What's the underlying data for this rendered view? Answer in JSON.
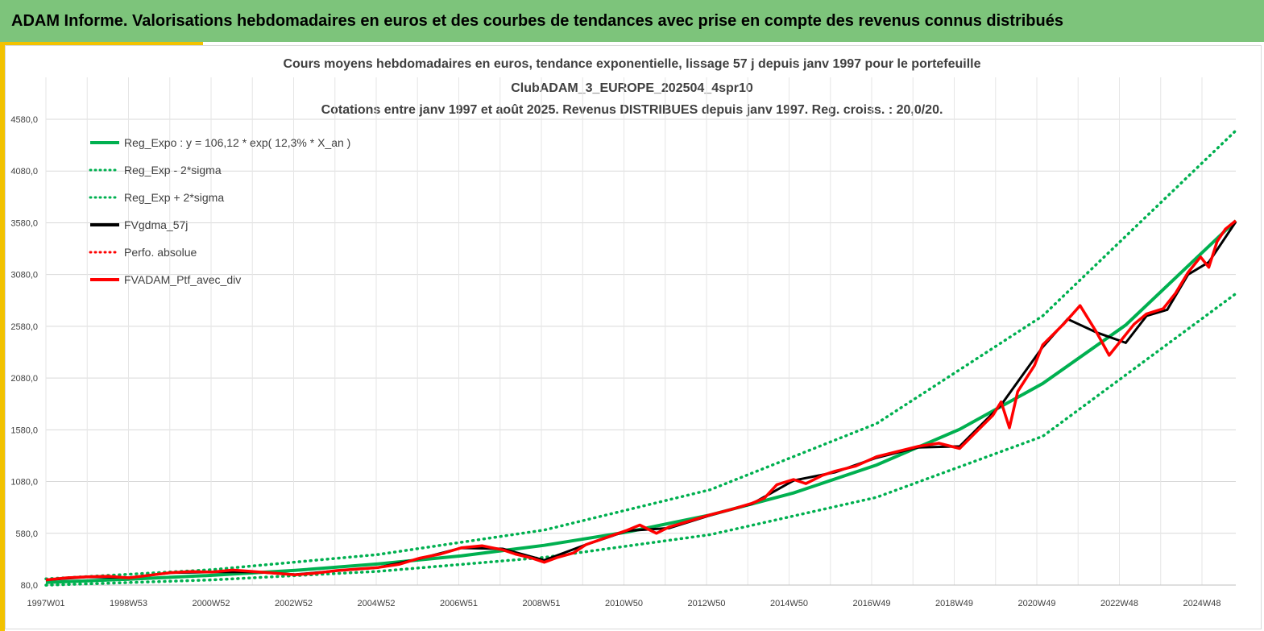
{
  "header": {
    "title": "ADAM Informe. Valorisations hebdomadaires en euros et des courbes de tendances avec prise en compte des revenus connus distribués"
  },
  "colors": {
    "header_bg": "#7dc47b",
    "accent": "#f2c200",
    "trend": "#00b050",
    "smooth": "#000000",
    "portfolio": "#ff0000"
  },
  "chart_data": {
    "type": "line",
    "title": [
      "Cours moyens hebdomadaires  en euros, tendance exponentielle, lissage 57 j depuis janv 1997 pour le portefeuille",
      "ClubADAM_3_EUROPE_202504_4spr10",
      "Cotations  entre janv 1997 et août 2025. Revenus DISTRIBUES depuis janv 1997. Reg. croiss. : 20,0/20."
    ],
    "ylim": [
      80,
      4580
    ],
    "xlim": [
      1997.0,
      2025.65
    ],
    "grid": true,
    "legend_position": "top-left",
    "y_ticks": [
      "80,0",
      "580,0",
      "1080,0",
      "1580,0",
      "2080,0",
      "2580,0",
      "3080,0",
      "3580,0",
      "4080,0",
      "4580,0"
    ],
    "x_ticks": [
      "1997W01",
      "1998W53",
      "2000W52",
      "2002W52",
      "2004W52",
      "2006W51",
      "2008W51",
      "2010W50",
      "2012W50",
      "2014W50",
      "2016W49",
      "2018W49",
      "2020W49",
      "2022W48",
      "2024W48"
    ],
    "legend": [
      {
        "label": "Reg_Expo : y = 106,12 * exp( 12,3% *  X_an )",
        "color": "#00b050",
        "style": "solid",
        "width": 4
      },
      {
        "label": "Reg_Exp - 2*sigma",
        "color": "#00b050",
        "style": "dotted",
        "width": 3
      },
      {
        "label": "Reg_Exp + 2*sigma",
        "color": "#00b050",
        "style": "dotted",
        "width": 3
      },
      {
        "label": "FVgdma_57j",
        "color": "#000000",
        "style": "solid",
        "width": 4
      },
      {
        "label": "Perfo. absolue",
        "color": "#ff0000",
        "style": "dotted",
        "width": 3
      },
      {
        "label": "FVADAM_Ptf_avec_div",
        "color": "#ff0000",
        "style": "solid",
        "width": 4
      }
    ],
    "trend": {
      "formula": "106.12 * exp(0.123 * years_since_1997)",
      "x": [
        1997.0,
        1999.0,
        2001.0,
        2003.0,
        2005.0,
        2007.0,
        2009.0,
        2011.0,
        2013.0,
        2015.0,
        2017.0,
        2019.0,
        2021.0,
        2023.0,
        2025.65
      ],
      "y": [
        106,
        136,
        174,
        222,
        284,
        363,
        464,
        593,
        758,
        970,
        1240,
        1585,
        2027,
        2592,
        3600
      ]
    },
    "band_lower": {
      "x": [
        1997.0,
        2001.0,
        2005.0,
        2009.0,
        2013.0,
        2017.0,
        2021.0,
        2025.65
      ],
      "y": [
        79,
        130,
        212,
        347,
        567,
        928,
        1517,
        2895
      ]
    },
    "band_upper": {
      "x": [
        1997.0,
        2001.0,
        2005.0,
        2009.0,
        2013.0,
        2017.0,
        2021.0,
        2025.65
      ],
      "y": [
        140,
        229,
        375,
        612,
        1002,
        1640,
        2680,
        4470
      ]
    },
    "series": [
      {
        "name": "FVADAM_Ptf_avec_div",
        "x": [
          1997.0,
          1997.5,
          1998.0,
          1998.5,
          1999.0,
          1999.5,
          2000.0,
          2000.5,
          2001.0,
          2001.5,
          2002.0,
          2002.5,
          2003.0,
          2003.5,
          2004.0,
          2004.5,
          2005.0,
          2005.5,
          2006.0,
          2006.5,
          2007.0,
          2007.5,
          2008.0,
          2008.3,
          2008.7,
          2009.0,
          2009.3,
          2009.7,
          2010.0,
          2010.5,
          2011.0,
          2011.3,
          2011.7,
          2012.0,
          2012.5,
          2013.0,
          2013.5,
          2014.0,
          2014.3,
          2014.6,
          2015.0,
          2015.3,
          2015.7,
          2016.0,
          2016.5,
          2017.0,
          2017.5,
          2018.0,
          2018.5,
          2019.0,
          2019.4,
          2019.8,
          2020.0,
          2020.2,
          2020.4,
          2020.8,
          2021.0,
          2021.5,
          2021.9,
          2022.3,
          2022.6,
          2022.9,
          2023.2,
          2023.5,
          2023.9,
          2024.2,
          2024.5,
          2024.8,
          2025.0,
          2025.2,
          2025.4,
          2025.65
        ],
        "y": [
          130,
          150,
          160,
          165,
          150,
          175,
          200,
          210,
          205,
          225,
          210,
          195,
          180,
          195,
          220,
          235,
          250,
          280,
          340,
          380,
          440,
          460,
          420,
          380,
          340,
          300,
          345,
          390,
          470,
          540,
          610,
          660,
          580,
          640,
          700,
          760,
          810,
          870,
          920,
          1050,
          1100,
          1060,
          1140,
          1180,
          1230,
          1320,
          1370,
          1420,
          1450,
          1400,
          1560,
          1720,
          1850,
          1600,
          1950,
          2200,
          2400,
          2600,
          2780,
          2520,
          2300,
          2450,
          2600,
          2700,
          2750,
          2900,
          3100,
          3250,
          3150,
          3400,
          3520,
          3600
        ]
      },
      {
        "name": "FVgdma_57j",
        "x": [
          1997.0,
          1998.0,
          1999.0,
          2000.0,
          2001.0,
          2002.0,
          2003.0,
          2004.0,
          2005.0,
          2006.0,
          2007.0,
          2008.0,
          2009.0,
          2010.0,
          2011.0,
          2012.0,
          2013.0,
          2014.0,
          2015.0,
          2016.0,
          2017.0,
          2018.0,
          2019.0,
          2020.0,
          2021.0,
          2021.6,
          2022.3,
          2023.0,
          2023.5,
          2024.0,
          2024.5,
          2025.0,
          2025.65
        ],
        "y": [
          130,
          158,
          152,
          198,
          206,
          208,
          182,
          218,
          250,
          335,
          438,
          430,
          320,
          470,
          605,
          630,
          755,
          865,
          1090,
          1170,
          1310,
          1410,
          1420,
          1820,
          2380,
          2650,
          2520,
          2420,
          2680,
          2740,
          3080,
          3200,
          3590
        ]
      }
    ]
  }
}
